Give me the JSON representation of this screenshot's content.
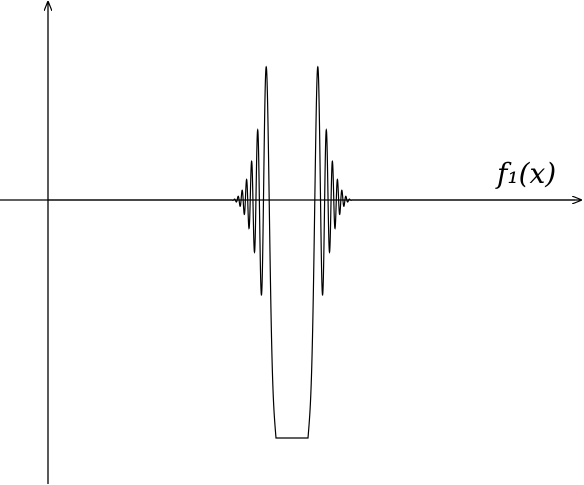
{
  "axis_label": "f₁(x)"
}
